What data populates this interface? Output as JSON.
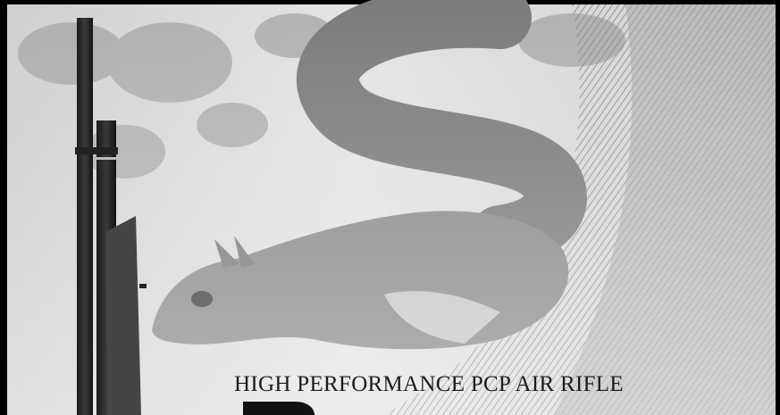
{
  "banner": {
    "headline": "HIGH PERFORMANCE PCP AIR RIFLE"
  }
}
